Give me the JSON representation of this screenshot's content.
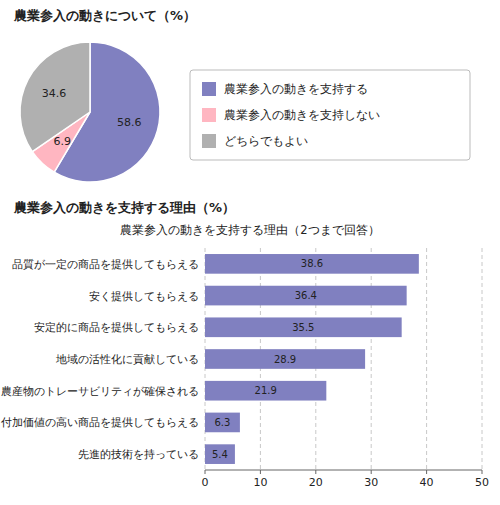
{
  "chart_data": [
    {
      "type": "pie",
      "title": "農業参入の動きについて（%）",
      "categories": [
        "農業参入の動きを支持する",
        "農業参入の動きを支持しない",
        "どちらでもよい"
      ],
      "values": [
        58.6,
        6.9,
        34.6
      ],
      "colors": [
        "#8080c0",
        "#ffb6c1",
        "#b0b0b0"
      ],
      "data_labels": true,
      "legend": "right"
    },
    {
      "type": "bar",
      "orientation": "horizontal",
      "title": "農業参入の動きを支持する理由（%）",
      "subtitle": "農業参入の動きを支持する理由（2つまで回答）",
      "categories": [
        "品質が一定の商品を提供してもらえる",
        "安く提供してもらえる",
        "安定的に商品を提供してもらえる",
        "地域の活性化に貢献している",
        "農産物のトレーサビリティが確保される",
        "付加価値の高い商品を提供してもらえる",
        "先進的技術を持っている"
      ],
      "values": [
        38.6,
        36.4,
        35.5,
        28.9,
        21.9,
        6.3,
        5.4
      ],
      "color": "#8080c0",
      "xlim": [
        0,
        50
      ],
      "xticks": [
        0,
        10,
        20,
        30,
        40,
        50
      ],
      "grid": true,
      "data_labels": true
    }
  ]
}
